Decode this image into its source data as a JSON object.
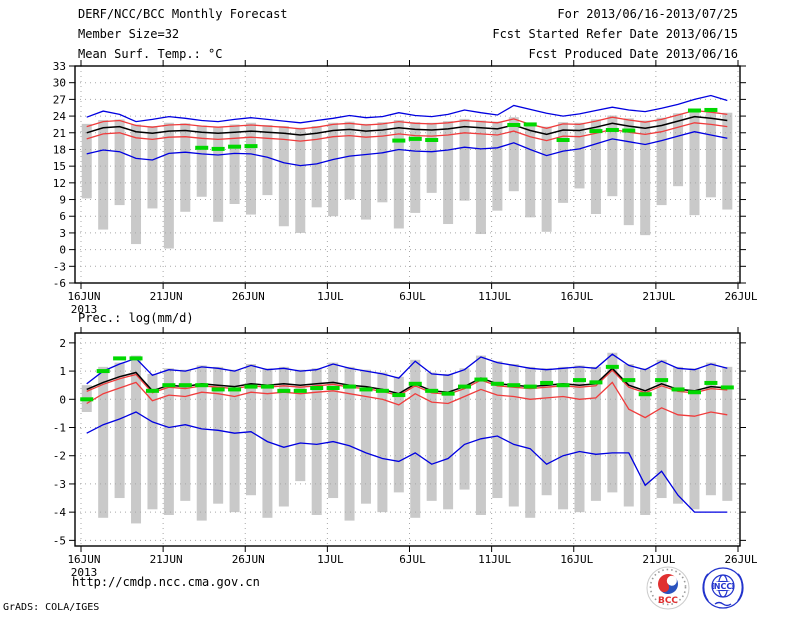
{
  "header": {
    "title": "DERF/NCC/BCC Monthly Forecast",
    "member_size": "Member Size=32",
    "temp_title": "Mean Surf. Temp.: °C",
    "for_range": "For 2013/06/16-2013/07/25",
    "refer_date": "Fcst Started Refer Date 2013/06/15",
    "produced_date": "Fcst Produced Date 2013/06/16"
  },
  "precip_panel_title": "Prec.: log(mm/d)",
  "footer": {
    "url": "http://cmdp.ncc.cma.gov.cn",
    "credit": "GrADS: COLA/IGES"
  },
  "logos": {
    "bcc_label": "BCC",
    "ncc_label": "NCC"
  },
  "colors": {
    "bar": "#c9c9c9",
    "grid": "#a8a8a8",
    "frame": "#000000",
    "envelope_blue": "#0000e0",
    "quartile_red": "#f03c3c",
    "mean_black": "#000000",
    "obs_green": "#00d800",
    "bcc_red": "#e03030",
    "bcc_blue": "#2a52be",
    "ncc_blue": "#2233cc"
  },
  "chart_data": [
    {
      "dom_name": "temperature-chart",
      "type": "bar",
      "title": "Mean Surf. Temp.: °C",
      "n_days": 40,
      "x_tick_labels": [
        "16JUN",
        "21JUN",
        "26JUN",
        "1JUL",
        "6JUL",
        "11JUL",
        "16JUL",
        "21JUL",
        "26JUL"
      ],
      "x_year_label": "2013",
      "ylim": [
        -6,
        33
      ],
      "yticks": [
        33,
        30,
        27,
        24,
        21,
        18,
        15,
        12,
        9,
        6,
        3,
        0,
        -3,
        -6
      ],
      "bars": {
        "name": "ensemble member daily range",
        "high": [
          22.6,
          23.3,
          23.4,
          22.5,
          22.2,
          22.8,
          22.7,
          22.3,
          22.1,
          22.5,
          22.8,
          22.4,
          22.2,
          21.9,
          22.2,
          22.8,
          23.0,
          22.6,
          22.9,
          23.3,
          22.9,
          22.8,
          23.1,
          23.5,
          23.2,
          23.0,
          23.8,
          22.8,
          22.1,
          22.9,
          22.8,
          23.4,
          24.1,
          23.6,
          23.2,
          23.7,
          24.5,
          25.3,
          25.0,
          24.6
        ],
        "low": [
          9.2,
          3.6,
          8.0,
          1.0,
          7.4,
          0.2,
          6.8,
          9.5,
          5.0,
          8.2,
          6.3,
          9.8,
          4.2,
          3.0,
          7.6,
          6.0,
          9.0,
          5.4,
          8.5,
          3.8,
          6.6,
          10.2,
          4.6,
          8.8,
          2.8,
          7.0,
          10.5,
          5.8,
          3.2,
          8.4,
          11.0,
          6.4,
          9.6,
          4.4,
          2.6,
          8.0,
          11.4,
          6.2,
          9.4,
          7.2
        ]
      },
      "series": [
        {
          "name": "ensemble max",
          "color": "#0000e0",
          "values": [
            23.8,
            24.9,
            24.3,
            23.0,
            23.4,
            23.9,
            23.6,
            23.2,
            23.0,
            23.4,
            23.7,
            23.4,
            23.1,
            22.8,
            23.2,
            23.6,
            24.1,
            23.7,
            23.9,
            24.6,
            24.1,
            23.9,
            24.3,
            25.1,
            24.6,
            24.2,
            25.9,
            25.2,
            24.5,
            24.0,
            24.4,
            25.0,
            25.6,
            25.1,
            24.8,
            25.4,
            26.1,
            27.0,
            27.7,
            26.8
          ]
        },
        {
          "name": "upper quartile",
          "color": "#f03c3c",
          "values": [
            22.1,
            23.0,
            23.2,
            22.3,
            22.0,
            22.4,
            22.5,
            22.2,
            22.0,
            22.2,
            22.4,
            22.2,
            22.0,
            21.7,
            22.0,
            22.5,
            22.7,
            22.4,
            22.6,
            23.0,
            22.7,
            22.6,
            22.8,
            23.2,
            23.0,
            22.8,
            23.5,
            22.5,
            21.8,
            22.6,
            22.5,
            23.1,
            23.8,
            23.3,
            22.9,
            23.4,
            24.2,
            25.0,
            24.7,
            24.3
          ]
        },
        {
          "name": "ensemble mean",
          "color": "#000000",
          "values": [
            21.0,
            21.9,
            22.1,
            21.2,
            20.9,
            21.3,
            21.4,
            21.1,
            20.9,
            21.1,
            21.3,
            21.1,
            20.9,
            20.6,
            20.9,
            21.4,
            21.6,
            21.3,
            21.5,
            21.9,
            21.6,
            21.5,
            21.7,
            22.1,
            21.9,
            21.7,
            22.4,
            21.4,
            20.7,
            21.5,
            21.4,
            22.0,
            22.7,
            22.2,
            21.8,
            22.3,
            23.1,
            23.9,
            23.6,
            23.2
          ]
        },
        {
          "name": "lower quartile",
          "color": "#f03c3c",
          "values": [
            19.9,
            20.8,
            21.0,
            20.1,
            19.8,
            20.2,
            20.3,
            20.0,
            19.8,
            20.0,
            20.2,
            20.0,
            19.8,
            19.5,
            19.8,
            20.3,
            20.5,
            20.2,
            20.4,
            20.8,
            20.5,
            20.4,
            20.6,
            21.0,
            20.8,
            20.6,
            21.3,
            20.3,
            19.6,
            20.4,
            20.3,
            20.9,
            21.6,
            21.1,
            20.7,
            21.2,
            22.0,
            22.8,
            22.5,
            22.1
          ]
        },
        {
          "name": "ensemble min",
          "color": "#0000e0",
          "values": [
            17.2,
            17.9,
            17.6,
            16.4,
            16.1,
            17.3,
            17.5,
            17.2,
            17.0,
            17.3,
            17.2,
            16.6,
            15.6,
            15.1,
            15.4,
            16.2,
            16.8,
            17.1,
            17.4,
            18.0,
            17.7,
            17.6,
            17.9,
            18.4,
            18.1,
            18.3,
            19.2,
            18.0,
            16.9,
            17.7,
            18.1,
            19.0,
            19.9,
            19.4,
            18.9,
            19.6,
            20.4,
            21.2,
            20.6,
            20.0
          ]
        }
      ],
      "obs": {
        "name": "observation",
        "color": "#00d800",
        "values": [
          null,
          null,
          null,
          null,
          null,
          null,
          null,
          18.3,
          18.1,
          18.5,
          18.6,
          null,
          null,
          null,
          null,
          null,
          null,
          null,
          null,
          19.6,
          19.9,
          19.7,
          null,
          null,
          null,
          null,
          22.4,
          22.5,
          null,
          19.7,
          null,
          21.3,
          21.5,
          21.4,
          null,
          null,
          null,
          25.0,
          25.1,
          null
        ]
      }
    },
    {
      "dom_name": "precipitation-chart",
      "type": "bar",
      "title": "Prec.: log(mm/d)",
      "n_days": 40,
      "x_tick_labels": [
        "16JUN",
        "21JUN",
        "26JUN",
        "1JUL",
        "6JUL",
        "11JUL",
        "16JUL",
        "21JUL",
        "26JUL"
      ],
      "x_year_label": "2013",
      "ylim": [
        -5.2,
        2.35
      ],
      "yticks": [
        2,
        1,
        0,
        -1,
        -2,
        -3,
        -4,
        -5
      ],
      "bars": {
        "name": "ensemble member daily range",
        "high": [
          0.5,
          1.15,
          1.3,
          1.55,
          0.9,
          1.1,
          1.05,
          1.2,
          1.15,
          1.05,
          1.25,
          1.1,
          1.15,
          1.05,
          1.1,
          1.3,
          1.15,
          1.05,
          0.95,
          0.8,
          1.4,
          0.95,
          0.9,
          1.1,
          1.55,
          1.35,
          1.25,
          1.15,
          1.1,
          1.15,
          1.2,
          1.15,
          1.65,
          1.25,
          1.1,
          1.4,
          1.15,
          1.1,
          1.3,
          1.15
        ],
        "low": [
          -0.45,
          -4.2,
          -3.5,
          -4.4,
          -3.9,
          -4.1,
          -3.6,
          -4.3,
          -3.7,
          -4.0,
          -3.4,
          -4.2,
          -3.8,
          -2.9,
          -4.1,
          -3.5,
          -4.3,
          -3.7,
          -4.0,
          -3.3,
          -4.2,
          -3.6,
          -3.9,
          -3.2,
          -4.1,
          -3.5,
          -3.8,
          -4.2,
          -3.4,
          -3.9,
          -4.0,
          -3.6,
          -3.3,
          -3.8,
          -4.1,
          -3.5,
          -3.7,
          -3.9,
          -3.4,
          -3.6
        ]
      },
      "series": [
        {
          "name": "ensemble max",
          "color": "#0000e0",
          "values": [
            0.55,
            1.0,
            1.25,
            1.45,
            0.85,
            1.05,
            1.0,
            1.15,
            1.1,
            1.0,
            1.2,
            1.05,
            1.1,
            1.0,
            1.05,
            1.25,
            1.1,
            1.0,
            0.9,
            0.75,
            1.35,
            0.9,
            0.85,
            1.05,
            1.5,
            1.3,
            1.2,
            1.1,
            1.05,
            1.1,
            1.15,
            1.1,
            1.6,
            1.2,
            1.05,
            1.35,
            1.1,
            1.05,
            1.25,
            1.1
          ]
        },
        {
          "name": "upper quartile",
          "color": "#f03c3c",
          "values": [
            0.28,
            0.53,
            0.73,
            0.88,
            0.23,
            0.43,
            0.38,
            0.48,
            0.43,
            0.38,
            0.48,
            0.43,
            0.48,
            0.43,
            0.48,
            0.53,
            0.43,
            0.38,
            0.28,
            0.13,
            0.48,
            0.23,
            0.18,
            0.38,
            0.68,
            0.48,
            0.43,
            0.38,
            0.43,
            0.48,
            0.43,
            0.48,
            1.03,
            0.43,
            0.23,
            0.48,
            0.28,
            0.23,
            0.38,
            0.33
          ]
        },
        {
          "name": "ensemble mean",
          "color": "#000000",
          "values": [
            0.35,
            0.6,
            0.8,
            0.95,
            0.3,
            0.5,
            0.45,
            0.55,
            0.5,
            0.45,
            0.55,
            0.5,
            0.55,
            0.5,
            0.55,
            0.6,
            0.5,
            0.45,
            0.35,
            0.2,
            0.55,
            0.3,
            0.25,
            0.45,
            0.75,
            0.55,
            0.5,
            0.45,
            0.5,
            0.55,
            0.5,
            0.55,
            1.1,
            0.5,
            0.3,
            0.55,
            0.35,
            0.3,
            0.45,
            0.4
          ]
        },
        {
          "name": "lower quartile",
          "color": "#f03c3c",
          "values": [
            -0.15,
            0.2,
            0.4,
            0.6,
            -0.05,
            0.15,
            0.1,
            0.25,
            0.2,
            0.1,
            0.25,
            0.2,
            0.25,
            0.2,
            0.25,
            0.3,
            0.2,
            0.1,
            0.0,
            -0.2,
            0.2,
            -0.1,
            -0.15,
            0.1,
            0.35,
            0.15,
            0.1,
            0.0,
            0.05,
            0.1,
            0.0,
            0.05,
            0.6,
            -0.35,
            -0.65,
            -0.3,
            -0.55,
            -0.6,
            -0.45,
            -0.55
          ]
        },
        {
          "name": "ensemble min",
          "color": "#0000e0",
          "values": [
            -1.2,
            -0.9,
            -0.7,
            -0.45,
            -0.8,
            -1.0,
            -0.9,
            -1.05,
            -1.1,
            -1.2,
            -1.15,
            -1.5,
            -1.7,
            -1.55,
            -1.6,
            -1.5,
            -1.65,
            -1.9,
            -2.1,
            -2.2,
            -1.9,
            -2.3,
            -2.1,
            -1.6,
            -1.4,
            -1.3,
            -1.6,
            -1.75,
            -2.3,
            -2.0,
            -1.85,
            -1.95,
            -1.9,
            -1.9,
            -3.05,
            -2.55,
            -3.4,
            -4.0,
            -4.0,
            -4.0
          ]
        }
      ],
      "obs": {
        "name": "observation",
        "color": "#00d800",
        "values": [
          0.0,
          1.0,
          1.45,
          1.45,
          0.3,
          0.5,
          0.5,
          0.5,
          0.35,
          0.35,
          0.45,
          0.45,
          0.3,
          0.3,
          0.4,
          0.4,
          0.45,
          0.35,
          0.3,
          0.15,
          0.55,
          0.3,
          0.2,
          0.45,
          0.7,
          0.55,
          0.5,
          0.45,
          0.58,
          0.5,
          0.68,
          0.6,
          1.15,
          0.68,
          0.18,
          0.68,
          0.35,
          0.25,
          0.58,
          0.42
        ]
      }
    }
  ]
}
